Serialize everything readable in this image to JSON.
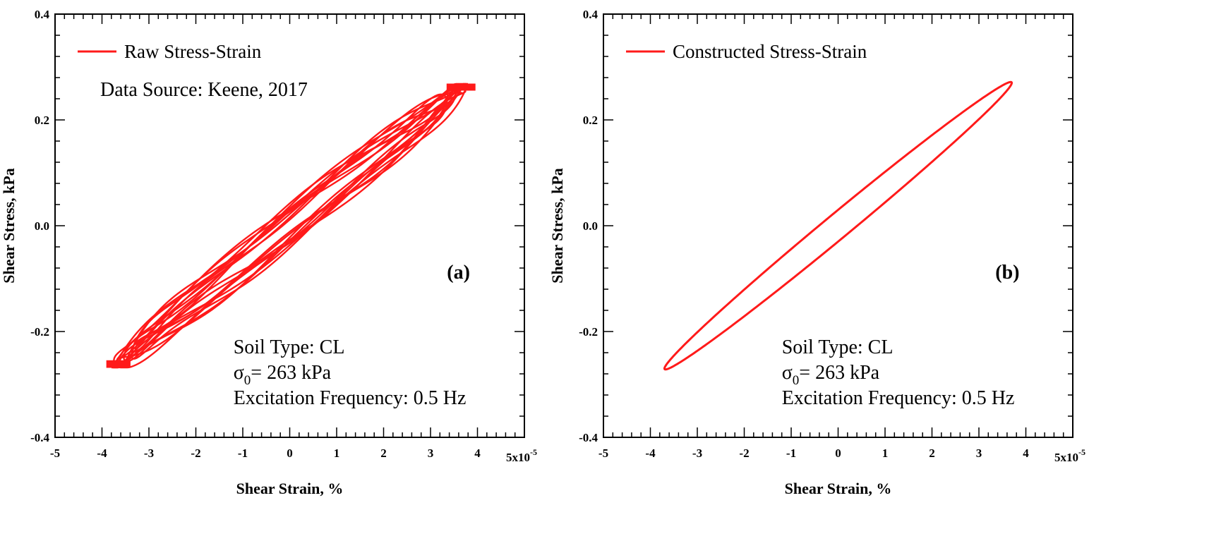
{
  "colors": {
    "series": "#ff1a1a",
    "axis": "#000000"
  },
  "chart_data": [
    {
      "type": "line",
      "panel_label": "(a)",
      "xlabel": "Shear Strain, %",
      "ylabel": "Shear Stress, kPa",
      "xlim": [
        -5e-05,
        5e-05
      ],
      "ylim": [
        -0.4,
        0.4
      ],
      "x_ticks": [
        -5,
        -4,
        -3,
        -2,
        -1,
        0,
        1,
        2,
        3,
        4
      ],
      "x_tick_labels": [
        "-5",
        "-4",
        "-3",
        "-2",
        "-1",
        "0",
        "1",
        "2",
        "3",
        "4"
      ],
      "x_multiplier_base": "5x10",
      "x_multiplier_exp": "-5",
      "y_ticks": [
        -0.4,
        -0.2,
        0.0,
        0.2,
        0.4
      ],
      "y_tick_labels": [
        "-0.4",
        "-0.2",
        "0.0",
        "0.2",
        "0.4"
      ],
      "legend": [
        "Raw Stress-Strain"
      ],
      "legend_position": "top-left",
      "source_note": "Data Source: Keene, 2017",
      "annotations": {
        "line1": "Soil Type: CL",
        "sigma": "σ",
        "sigma_sub": "0",
        "line2_rest": "= 263 kPa",
        "line3": "Excitation Frequency: 0.5 Hz"
      },
      "series": [
        {
          "name": "Raw Stress-Strain",
          "style": "raw-loops",
          "strain_amplitude": 3.8e-05,
          "stress_amplitude": 0.268,
          "cycles": 10,
          "loop_half_width_stress": 0.028
        }
      ]
    },
    {
      "type": "line",
      "panel_label": "(b)",
      "xlabel": "Shear Strain, %",
      "ylabel": "Shear Stress, kPa",
      "xlim": [
        -5e-05,
        5e-05
      ],
      "ylim": [
        -0.4,
        0.4
      ],
      "x_ticks": [
        -5,
        -4,
        -3,
        -2,
        -1,
        0,
        1,
        2,
        3,
        4
      ],
      "x_tick_labels": [
        "-5",
        "-4",
        "-3",
        "-2",
        "-1",
        "0",
        "1",
        "2",
        "3",
        "4"
      ],
      "x_multiplier_base": "5x10",
      "x_multiplier_exp": "-5",
      "y_ticks": [
        -0.4,
        -0.2,
        0.0,
        0.2,
        0.4
      ],
      "y_tick_labels": [
        "-0.4",
        "-0.2",
        "0.0",
        "0.2",
        "0.4"
      ],
      "legend": [
        "Constructed Stress-Strain"
      ],
      "legend_position": "top-left",
      "annotations": {
        "line1": "Soil Type: CL",
        "sigma": "σ",
        "sigma_sub": "0",
        "line2_rest": "= 263 kPa",
        "line3": "Excitation Frequency: 0.5 Hz"
      },
      "series": [
        {
          "name": "Constructed Stress-Strain",
          "style": "ellipse",
          "strain_amplitude": 3.7e-05,
          "stress_amplitude": 0.27,
          "loop_half_width_stress": 0.03
        }
      ]
    }
  ]
}
